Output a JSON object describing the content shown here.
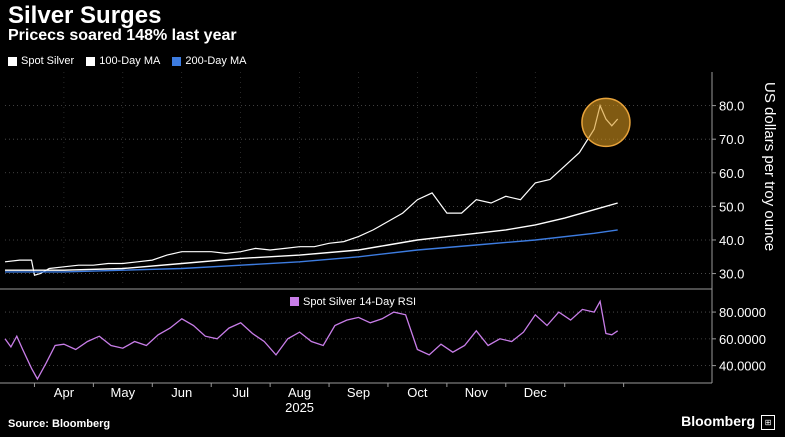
{
  "header": {
    "title": "Silver Surges",
    "subtitle": "Pricecs soared 148% last year"
  },
  "footer": {
    "source": "Source: Bloomberg",
    "brand": "Bloomberg"
  },
  "chart_data": [
    {
      "type": "line",
      "ylabel": "US dollars per troy ounce",
      "ylim": [
        26,
        90
      ],
      "yticks": [
        "30.0",
        "40.0",
        "50.0",
        "60.0",
        "70.0",
        "80.0"
      ],
      "xlim": [
        0,
        12
      ],
      "xticks": [
        "Apr",
        "May",
        "Jun",
        "Jul",
        "Aug",
        "Sep",
        "Oct",
        "Nov",
        "Dec"
      ],
      "xtick_positions": [
        1.0,
        2.0,
        3.0,
        4.0,
        5.0,
        6.0,
        7.0,
        8.0,
        9.0
      ],
      "xyear_label": "2025",
      "legend": [
        "Spot Silver",
        "100-Day MA",
        "200-Day MA"
      ],
      "colors": {
        "spot": "#ffffff",
        "ma100": "#ffffff",
        "ma200": "#3d7ce0"
      },
      "series": [
        {
          "name": "Spot Silver",
          "x": [
            0.0,
            0.25,
            0.45,
            0.5,
            0.6,
            0.75,
            1.0,
            1.25,
            1.5,
            1.75,
            2.0,
            2.25,
            2.5,
            2.75,
            3.0,
            3.25,
            3.5,
            3.75,
            4.0,
            4.25,
            4.5,
            4.75,
            5.0,
            5.25,
            5.5,
            5.75,
            6.0,
            6.25,
            6.5,
            6.75,
            7.0,
            7.25,
            7.5,
            7.75,
            8.0,
            8.25,
            8.5,
            8.75,
            9.0,
            9.25,
            9.5,
            9.75,
            10.0,
            10.1,
            10.2,
            10.3,
            10.4
          ],
          "y": [
            33.5,
            34,
            34,
            29.5,
            30,
            31.5,
            32,
            32.5,
            32.5,
            33,
            33,
            33.5,
            34,
            35.5,
            36.5,
            36.5,
            36.5,
            36,
            36.5,
            37.5,
            37,
            37.5,
            38,
            38,
            39,
            39.5,
            41,
            43,
            45.5,
            48,
            52,
            54,
            48,
            48,
            52,
            51,
            53,
            52,
            57,
            58,
            62,
            66,
            73,
            80,
            76,
            74,
            76
          ]
        },
        {
          "name": "100-Day MA",
          "x": [
            0,
            1,
            2,
            3,
            4,
            5,
            6,
            6.5,
            7,
            7.5,
            8,
            8.5,
            9,
            9.5,
            10,
            10.4
          ],
          "y": [
            31,
            31,
            31.5,
            33,
            34.5,
            35.5,
            37,
            38.5,
            40,
            41,
            42,
            43,
            44.5,
            46.5,
            49,
            51
          ]
        },
        {
          "name": "200-Day MA",
          "x": [
            0,
            1,
            2,
            3,
            4,
            5,
            6,
            7,
            8,
            9,
            10,
            10.4
          ],
          "y": [
            30.5,
            30.5,
            31,
            31.5,
            32.5,
            33.5,
            35,
            37,
            38.5,
            40,
            42,
            43
          ]
        }
      ],
      "annotation": {
        "type": "highlight-circle",
        "x": 10.2,
        "y": 75
      }
    },
    {
      "type": "line",
      "legend": [
        "Spot Silver 14-Day RSI"
      ],
      "colors": {
        "rsi": "#c87de8"
      },
      "ylim": [
        27,
        95
      ],
      "yticks": [
        "40.0000",
        "60.0000",
        "80.0000"
      ],
      "series": [
        {
          "name": "Spot Silver 14-Day RSI",
          "x": [
            0.0,
            0.1,
            0.2,
            0.3,
            0.45,
            0.55,
            0.7,
            0.85,
            1.0,
            1.2,
            1.4,
            1.6,
            1.8,
            2.0,
            2.2,
            2.4,
            2.6,
            2.8,
            3.0,
            3.2,
            3.4,
            3.6,
            3.8,
            4.0,
            4.2,
            4.4,
            4.6,
            4.8,
            5.0,
            5.2,
            5.4,
            5.6,
            5.8,
            6.0,
            6.2,
            6.4,
            6.6,
            6.8,
            7.0,
            7.2,
            7.4,
            7.6,
            7.8,
            8.0,
            8.2,
            8.4,
            8.6,
            8.8,
            9.0,
            9.2,
            9.4,
            9.6,
            9.8,
            10.0,
            10.1,
            10.2,
            10.3,
            10.4
          ],
          "y": [
            60,
            54,
            62,
            52,
            38,
            30,
            42,
            55,
            56,
            52,
            58,
            62,
            55,
            53,
            58,
            55,
            63,
            68,
            75,
            70,
            62,
            60,
            68,
            72,
            64,
            58,
            48,
            60,
            65,
            58,
            55,
            70,
            74,
            76,
            72,
            75,
            80,
            78,
            52,
            48,
            56,
            50,
            55,
            66,
            55,
            60,
            58,
            65,
            78,
            70,
            80,
            74,
            82,
            80,
            88,
            64,
            63,
            66
          ]
        }
      ]
    }
  ]
}
